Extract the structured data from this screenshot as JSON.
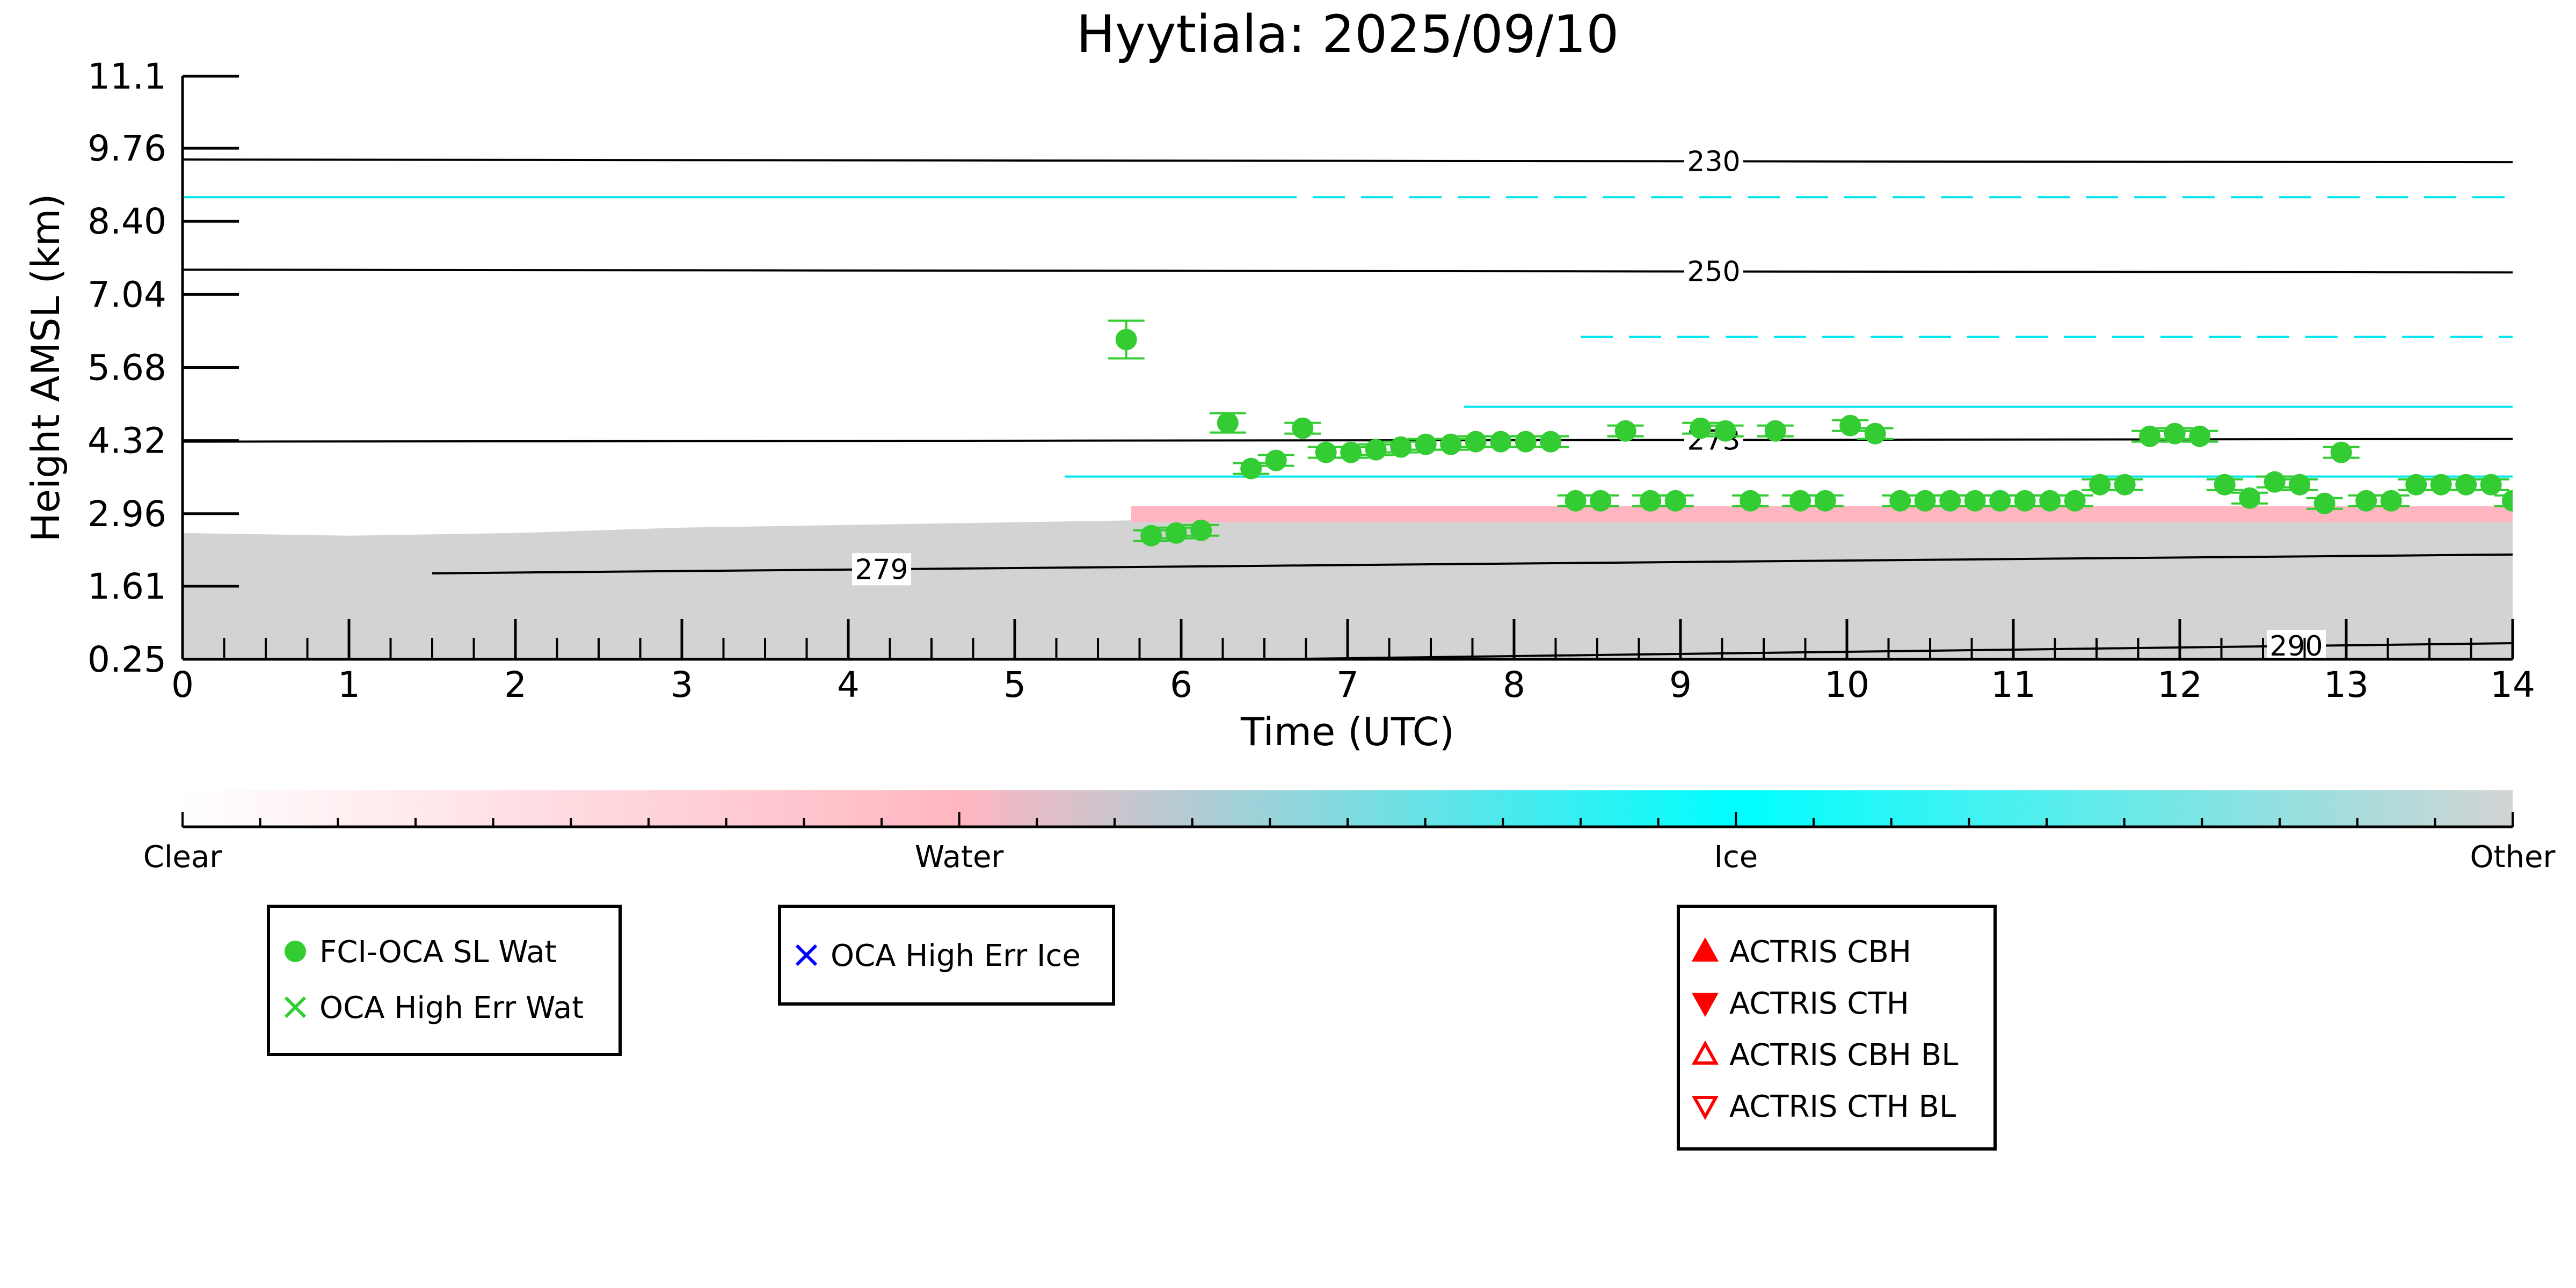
{
  "chart_data": {
    "type": "scatter",
    "title": "Hyytiala: 2025/09/10",
    "xlabel": "Time (UTC)",
    "ylabel": "Height AMSL (km)",
    "xlim": [
      0,
      14
    ],
    "ylim": [
      0.25,
      11.1
    ],
    "x_ticks": [
      0,
      1,
      2,
      3,
      4,
      5,
      6,
      7,
      8,
      9,
      10,
      11,
      12,
      13,
      14
    ],
    "x_tick_labels": [
      "0",
      "1",
      "2",
      "3",
      "4",
      "5",
      "6",
      "7",
      "8",
      "9",
      "10",
      "11",
      "12",
      "13",
      "14"
    ],
    "y_ticks": [
      0.25,
      1.61,
      2.96,
      4.32,
      5.68,
      7.04,
      8.4,
      9.76,
      11.1
    ],
    "y_tick_labels": [
      "0.25",
      "1.61",
      "2.96",
      "4.32",
      "5.68",
      "7.04",
      "8.40",
      "9.76",
      "11.1"
    ],
    "grid": false,
    "background_regions": [
      {
        "class": "Other",
        "color": "#d3d3d3",
        "x": [
          0,
          14
        ],
        "y_top": [
          2.6,
          2.55,
          2.6,
          2.7,
          2.75,
          2.8,
          2.85,
          2.85,
          2.85,
          2.85,
          2.85,
          2.8,
          2.85,
          2.8,
          2.8
        ],
        "y_bottom": 0.25
      },
      {
        "class": "Water",
        "color": "#ffb6c1",
        "x_range": [
          5.7,
          14
        ],
        "y_range": [
          2.8,
          3.1
        ]
      }
    ],
    "ice_layers": [
      {
        "x_range": [
          6.5,
          14
        ],
        "y": 8.85,
        "dashed": true
      },
      {
        "x_range": [
          0,
          6.5
        ],
        "y": 8.85,
        "dashed": false
      },
      {
        "x_range": [
          8.4,
          14
        ],
        "y": 6.25,
        "dashed": true
      },
      {
        "x_range": [
          7.7,
          14
        ],
        "y": 4.95
      },
      {
        "x_range": [
          5.3,
          14
        ],
        "y": 3.65
      }
    ],
    "temperature_contours": [
      {
        "label": "230",
        "x": [
          0,
          14
        ],
        "y": [
          9.55,
          9.5
        ],
        "label_x": 9.2
      },
      {
        "label": "250",
        "x": [
          0,
          14
        ],
        "y": [
          7.5,
          7.45
        ],
        "label_x": 9.2
      },
      {
        "label": "273",
        "x": [
          0,
          14
        ],
        "y": [
          4.3,
          4.35
        ],
        "label_x": 9.2
      },
      {
        "label": "279",
        "x": [
          1.5,
          14
        ],
        "y": [
          1.85,
          2.2
        ],
        "label_x": 4.2
      },
      {
        "label": "290",
        "x": [
          6.5,
          14
        ],
        "y": [
          0.25,
          0.55
        ],
        "label_x": 12.7
      }
    ],
    "series": [
      {
        "name": "FCI-OCA SL Wat",
        "color": "#33cc33",
        "marker": "circle",
        "x": [
          5.67,
          5.82,
          5.97,
          6.12,
          6.28,
          6.42,
          6.57,
          6.73,
          6.87,
          7.02,
          7.17,
          7.32,
          7.47,
          7.62,
          7.77,
          7.92,
          8.07,
          8.22,
          8.37,
          8.52,
          8.67,
          8.82,
          8.97,
          9.12,
          9.27,
          9.42,
          9.57,
          9.72,
          9.87,
          10.02,
          10.17,
          10.32,
          10.47,
          10.62,
          10.77,
          10.92,
          11.07,
          11.22,
          11.37,
          11.52,
          11.67,
          11.82,
          11.97,
          12.12,
          12.27,
          12.42,
          12.57,
          12.72,
          12.87,
          12.97,
          13.12,
          13.27,
          13.42,
          13.57,
          13.72,
          13.87,
          14.0
        ],
        "y": [
          6.2,
          2.55,
          2.6,
          2.65,
          4.65,
          3.8,
          3.95,
          4.55,
          4.1,
          4.1,
          4.15,
          4.2,
          4.25,
          4.25,
          4.3,
          4.3,
          4.3,
          4.3,
          3.2,
          3.2,
          4.5,
          3.2,
          3.2,
          4.55,
          4.5,
          3.2,
          4.5,
          3.2,
          3.2,
          4.6,
          4.45,
          3.2,
          3.2,
          3.2,
          3.2,
          3.2,
          3.2,
          3.2,
          3.2,
          3.5,
          3.5,
          4.4,
          4.45,
          4.4,
          3.5,
          3.25,
          3.55,
          3.5,
          3.15,
          4.1,
          3.2,
          3.2,
          3.5,
          3.5,
          3.5,
          3.5,
          3.2
        ],
        "y_err": [
          0.35,
          0.1,
          0.1,
          0.1,
          0.18,
          0.1,
          0.1,
          0.1,
          0.1,
          0.1,
          0.1,
          0.1,
          0.1,
          0.1,
          0.1,
          0.1,
          0.1,
          0.1,
          0.1,
          0.1,
          0.1,
          0.1,
          0.1,
          0.1,
          0.1,
          0.1,
          0.1,
          0.1,
          0.1,
          0.1,
          0.1,
          0.1,
          0.1,
          0.1,
          0.1,
          0.1,
          0.1,
          0.1,
          0.1,
          0.1,
          0.1,
          0.1,
          0.1,
          0.1,
          0.1,
          0.1,
          0.1,
          0.1,
          0.1,
          0.1,
          0.1,
          0.1,
          0.1,
          0.1,
          0.1,
          0.1,
          0.1
        ]
      }
    ],
    "colorbar": {
      "labels": [
        "Clear",
        "Water",
        "Ice",
        "Other"
      ],
      "colors": [
        "#ffffff",
        "#ffb6c1",
        "#00ffff",
        "#d3d3d3"
      ]
    },
    "legends": [
      {
        "entries": [
          {
            "label": "FCI-OCA SL Wat",
            "marker": "circle",
            "color": "#33cc33"
          },
          {
            "label": "OCA High Err Wat",
            "marker": "x",
            "color": "#33cc33"
          }
        ]
      },
      {
        "entries": [
          {
            "label": "OCA High Err Ice",
            "marker": "x",
            "color": "#0000ff"
          }
        ]
      },
      {
        "entries": [
          {
            "label": "ACTRIS CBH",
            "marker": "triangle-up",
            "color": "#ff0000"
          },
          {
            "label": "ACTRIS CTH",
            "marker": "triangle-down",
            "color": "#ff0000"
          },
          {
            "label": "ACTRIS CBH BL",
            "marker": "triangle-up-open",
            "color": "#ff0000"
          },
          {
            "label": "ACTRIS CTH BL",
            "marker": "triangle-down-open",
            "color": "#ff0000"
          }
        ]
      }
    ]
  }
}
